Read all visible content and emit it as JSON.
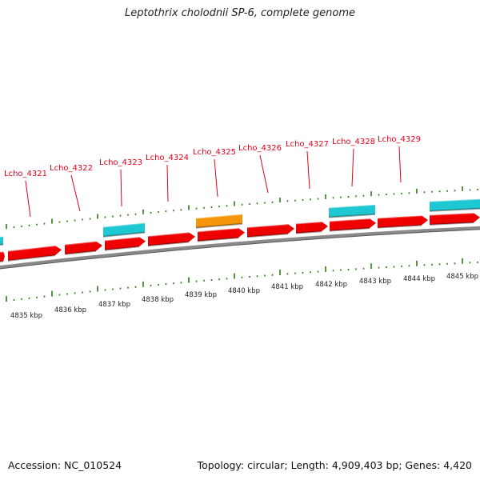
{
  "title": "Leptothrix cholodnii SP-6, complete genome",
  "footer": {
    "accession": "Accession: NC_010524",
    "summary": "Topology: circular; Length: 4,909,403 bp; Genes: 4,420"
  },
  "colors": {
    "cds_forward": "#ee0000",
    "cds_other": "#1ec8d2",
    "highlight": "#f5960a",
    "backbone": "#8a8a8a",
    "tick": "#2a7a10",
    "label": "#e4001b"
  },
  "gene_labels": [
    "Lcho_4321",
    "Lcho_4322",
    "Lcho_4323",
    "Lcho_4324",
    "Lcho_4325",
    "Lcho_4326",
    "Lcho_4327",
    "Lcho_4328",
    "Lcho_4329"
  ],
  "kbp_labels": [
    "4835 kbp",
    "4836 kbp",
    "4837 kbp",
    "4838 kbp",
    "4839 kbp",
    "4840 kbp",
    "4841 kbp",
    "4842 kbp",
    "4843 kbp",
    "4844 kbp",
    "4845 kbp"
  ]
}
